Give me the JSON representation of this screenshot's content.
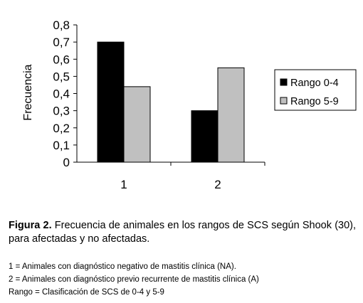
{
  "chart_data": {
    "type": "bar",
    "categories": [
      "1",
      "2"
    ],
    "series": [
      {
        "name": "Rango 0-4",
        "values": [
          0.7,
          0.3
        ],
        "color": "#000000"
      },
      {
        "name": "Rango 5-9",
        "values": [
          0.44,
          0.55
        ],
        "color": "#c0c0c0"
      }
    ],
    "ylabel": "Frecuencia",
    "ylim": [
      0,
      0.8
    ],
    "yticks": [
      "0",
      "0,1",
      "0,2",
      "0,3",
      "0,4",
      "0,5",
      "0,6",
      "0,7",
      "0,8"
    ],
    "grid": false,
    "legend_position": "right"
  },
  "caption": {
    "label": "Figura 2.",
    "text": " Frecuencia de animales en los rangos de SCS según Shook (30), para  afectadas y  no afectadas."
  },
  "notes": [
    "1 = Animales con diagnóstico negativo de mastitis clínica (NA).",
    "2 = Animales con diagnóstico previo recurrente de mastitis clínica (A)",
    "Rango = Clasificación de SCS de 0-4 y 5-9"
  ]
}
